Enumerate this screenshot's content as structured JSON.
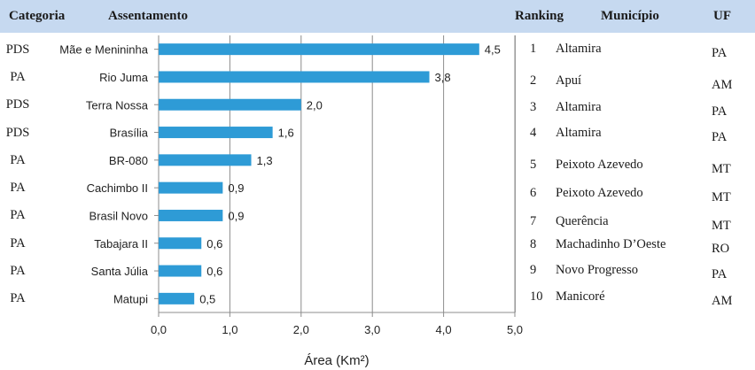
{
  "header": {
    "categoria": "Categoria",
    "assentamento": "Assentamento",
    "ranking": "Ranking",
    "municipio": "Município",
    "uf": "UF"
  },
  "categories": [
    "PDS",
    "PA",
    "PDS",
    "PDS",
    "PA",
    "PA",
    "PA",
    "PA",
    "PA",
    "PA"
  ],
  "ranking": [
    {
      "rank": "1",
      "municipio": "Altamira",
      "uf": "PA"
    },
    {
      "rank": "2",
      "municipio": "Apuí",
      "uf": "AM"
    },
    {
      "rank": "3",
      "municipio": "Altamira",
      "uf": "PA"
    },
    {
      "rank": "4",
      "municipio": "Altamira",
      "uf": "PA"
    },
    {
      "rank": "5",
      "municipio": "Peixoto Azevedo",
      "uf": "MT"
    },
    {
      "rank": "6",
      "municipio": "Peixoto Azevedo",
      "uf": "MT"
    },
    {
      "rank": "7",
      "municipio": "Querência",
      "uf": "MT"
    },
    {
      "rank": "8",
      "municipio": "Machadinho D’Oeste",
      "uf": "RO"
    },
    {
      "rank": "9",
      "municipio": "Novo Progresso",
      "uf": "PA"
    },
    {
      "rank": "10",
      "municipio": "Manicoré",
      "uf": "AM"
    }
  ],
  "chart_data": {
    "type": "bar",
    "orientation": "horizontal",
    "categories": [
      "Mãe e Menininha",
      "Rio Juma",
      "Terra Nossa",
      "Brasília",
      "BR-080",
      "Cachimbo II",
      "Brasil Novo",
      "Tabajara II",
      "Santa Júlia",
      "Matupi"
    ],
    "values": [
      4.5,
      3.8,
      2.0,
      1.6,
      1.3,
      0.9,
      0.9,
      0.6,
      0.6,
      0.5
    ],
    "value_labels": [
      "4,5",
      "3,8",
      "2,0",
      "1,6",
      "1,3",
      "0,9",
      "0,9",
      "0,6",
      "0,6",
      "0,5"
    ],
    "xlabel": "Área (Km²)",
    "xlim": [
      0,
      5
    ],
    "xticks": [
      0,
      1,
      2,
      3,
      4,
      5
    ],
    "xtick_labels": [
      "0,0",
      "1,0",
      "2,0",
      "3,0",
      "4,0",
      "5,0"
    ],
    "grid": "vertical",
    "bar_color": "#2e9bd6"
  }
}
